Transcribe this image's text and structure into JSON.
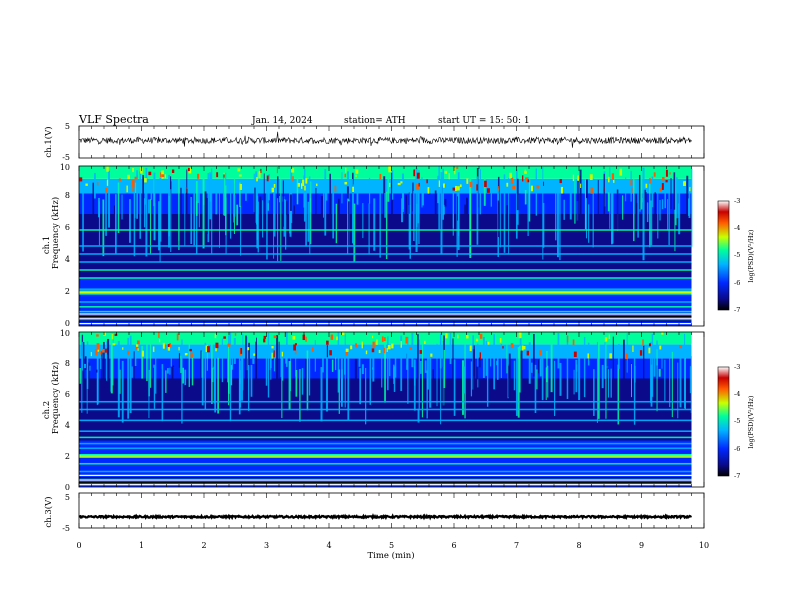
{
  "header": {
    "title": "VLF  Spectra",
    "date": "Jan.  14,  2024",
    "station": "station= ATH",
    "start": "start  UT  =    15: 50: 1"
  },
  "colors": {
    "colormap": [
      "#000000",
      "#0a0a8a",
      "#0028ff",
      "#00b4ff",
      "#00ff9c",
      "#c8ff00",
      "#ff5a00",
      "#c80000",
      "#ffffff"
    ],
    "trace": "#000000",
    "axis": "#000000"
  },
  "chart_data": [
    {
      "type": "line",
      "name": "ch1-waveform",
      "ylabel": "ch.1(V)",
      "yticks": [
        "5",
        "-5"
      ],
      "ylim": [
        -5,
        5
      ],
      "xlim": [
        0,
        10
      ],
      "baseline": 0.5,
      "noise_amplitude": 1.0,
      "data_end": 9.8
    },
    {
      "type": "heatmap",
      "name": "ch1-spectrogram",
      "ylabel": "Frequency  (kHz)",
      "channel_label": "ch.1",
      "yticks": [
        "0",
        "2",
        "4",
        "6",
        "8",
        "10"
      ],
      "ylim": [
        0,
        10
      ],
      "xlim": [
        0,
        10
      ],
      "data_end": 9.8,
      "colorbar": {
        "label": "log(PSD)(V²/Hz)",
        "ticks": [
          "-3",
          "-4",
          "-5",
          "-6",
          "-7"
        ],
        "range": [
          -7,
          -3
        ]
      },
      "bands_khz": [
        0.3,
        0.6,
        0.9,
        1.2,
        1.5,
        2.0,
        2.3,
        3.0,
        3.5,
        4.0,
        4.5,
        5.0,
        6.0
      ],
      "strong_band_khz": 2.1
    },
    {
      "type": "heatmap",
      "name": "ch2-spectrogram",
      "ylabel": "Frequency  (kHz)",
      "channel_label": "ch.2",
      "yticks": [
        "0",
        "2",
        "4",
        "6",
        "8",
        "10"
      ],
      "ylim": [
        0,
        10
      ],
      "xlim": [
        0,
        10
      ],
      "data_end": 9.8,
      "colorbar": {
        "label": "log(PSD)(V²/Hz)",
        "ticks": [
          "-3",
          "-4",
          "-5",
          "-6",
          "-7"
        ],
        "range": [
          -7,
          -3
        ]
      },
      "bands_khz": [
        0.3,
        0.6,
        1.0,
        1.5,
        2.0,
        2.5,
        2.8,
        3.2,
        3.6,
        4.3,
        5.0,
        5.5
      ],
      "strong_band_khz": 2.0
    },
    {
      "type": "line",
      "name": "ch3-waveform",
      "ylabel": "ch.3(V)",
      "yticks": [
        "5",
        "-5"
      ],
      "ylim": [
        -5,
        5
      ],
      "xlim": [
        0,
        10
      ],
      "baseline": -1.8,
      "noise_amplitude": 0.25,
      "data_end": 9.8
    }
  ],
  "xaxis": {
    "label": "Time  (min)",
    "ticks": [
      "0",
      "1",
      "2",
      "3",
      "4",
      "5",
      "6",
      "7",
      "8",
      "9",
      "10"
    ],
    "range": [
      0,
      10
    ]
  }
}
